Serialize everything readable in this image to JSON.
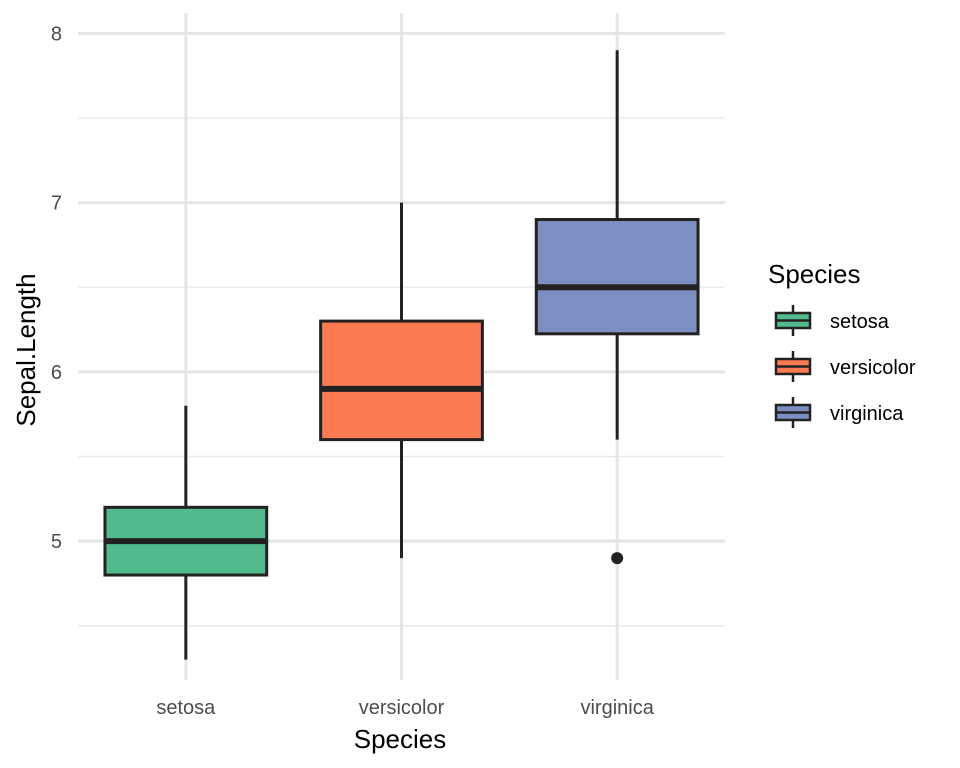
{
  "chart_data": {
    "type": "box",
    "xlabel": "Species",
    "ylabel": "Sepal.Length",
    "ylim": [
      4.18,
      8.12
    ],
    "y_ticks": [
      5,
      6,
      7,
      8
    ],
    "y_tick_labels": [
      "5",
      "6",
      "7",
      "8"
    ],
    "grid": true,
    "legend": {
      "title": "Species",
      "position": "right"
    },
    "categories": [
      "setosa",
      "versicolor",
      "virginica"
    ],
    "boxes": [
      {
        "name": "setosa",
        "min": 4.3,
        "q1": 4.8,
        "median": 5.0,
        "q3": 5.2,
        "max": 5.8,
        "outliers": [],
        "color": "#52bb8e"
      },
      {
        "name": "versicolor",
        "min": 4.9,
        "q1": 5.6,
        "median": 5.9,
        "q3": 6.3,
        "max": 7.0,
        "outliers": [],
        "color": "#fb7a50"
      },
      {
        "name": "virginica",
        "min": 5.6,
        "q1": 6.225,
        "median": 6.5,
        "q3": 6.9,
        "max": 7.9,
        "outliers": [
          4.9
        ],
        "color": "#7d8fc2"
      }
    ]
  }
}
